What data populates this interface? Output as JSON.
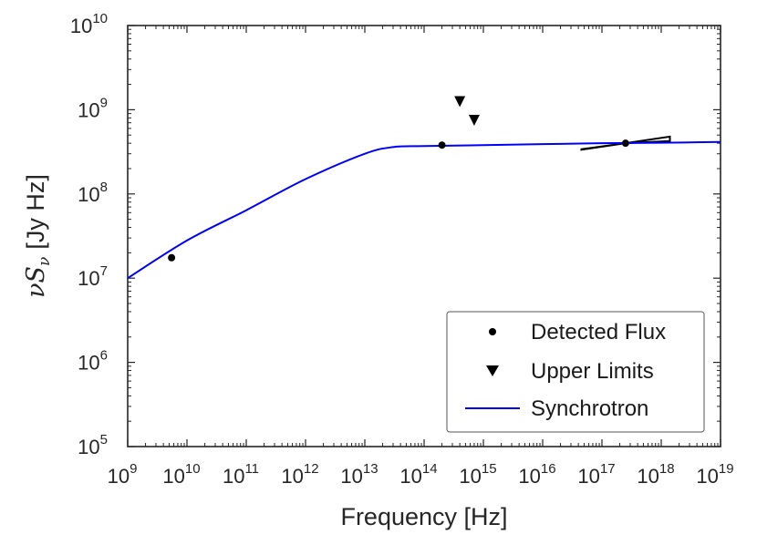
{
  "chart_data": {
    "type": "line",
    "title": "",
    "xlabel": "Frequency [Hz]",
    "ylabel_math": "νS",
    "ylabel_sub": "ν",
    "ylabel_units": "[Jy Hz]",
    "xscale": "log",
    "yscale": "log",
    "xlim": [
      1000000000.0,
      1e+19
    ],
    "ylim": [
      100000.0,
      10000000000.0
    ],
    "x_tick_exponents": [
      9,
      10,
      11,
      12,
      13,
      14,
      15,
      16,
      17,
      18,
      19
    ],
    "y_tick_exponents": [
      5,
      6,
      7,
      8,
      9,
      10
    ],
    "tick_base": "10",
    "series": [
      {
        "name": "Synchrotron",
        "kind": "line",
        "color": "#0000ff",
        "x": [
          1000000000.0,
          10000000000.0,
          100000000000.0,
          1000000000000.0,
          10000000000000.0,
          30000000000000.0,
          100000000000000.0,
          1000000000000000.0,
          1e+16,
          1e+17,
          1e+18,
          1e+19
        ],
        "y": [
          10000000.0,
          28000000.0,
          64000000.0,
          150000000.0,
          300000000.0,
          360000000.0,
          370000000.0,
          380000000.0,
          390000000.0,
          400000000.0,
          405000000.0,
          415000000.0
        ]
      },
      {
        "name": "Detected Flux",
        "kind": "scatter",
        "marker": "circle",
        "color": "#000000",
        "x": [
          5500000000.0,
          200000000000000.0,
          2.5e+17
        ],
        "y": [
          17500000.0,
          380000000.0,
          400000000.0
        ]
      },
      {
        "name": "Upper Limits",
        "kind": "scatter",
        "marker": "triangle-down",
        "color": "#000000",
        "x": [
          400000000000000.0,
          700000000000000.0
        ],
        "y": [
          1250000000.0,
          750000000.0
        ]
      }
    ],
    "bowtie": {
      "color": "#000000",
      "pivot": [
        2.5e+17,
        400000000.0
      ],
      "x_range": [
        4.5e+16,
        1.4e+18
      ],
      "flux_range_low": [
        335000000.0,
        425000000.0
      ],
      "flux_range_high": [
        480000000.0,
        340000000.0
      ]
    },
    "legend": {
      "position": "bottom-right",
      "entries": [
        "Detected Flux",
        "Upper Limits",
        "Synchrotron"
      ]
    }
  }
}
